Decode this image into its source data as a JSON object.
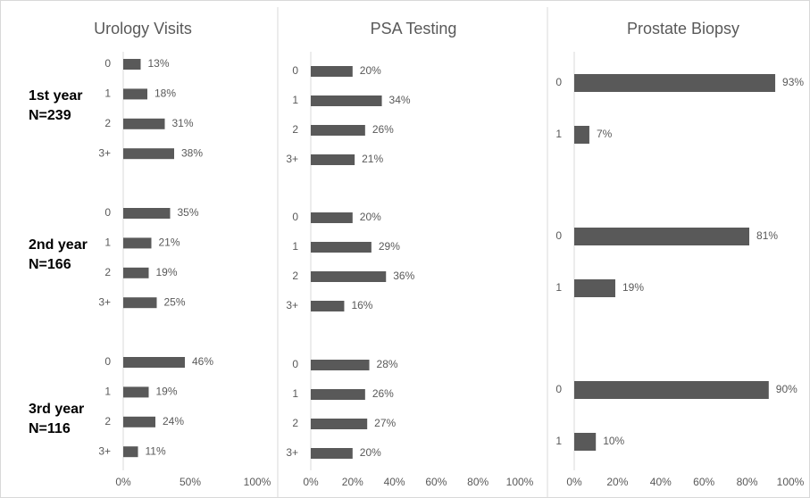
{
  "row_groups": [
    {
      "label": "1st year",
      "n": "N=239"
    },
    {
      "label": "2nd year",
      "n": "N=166"
    },
    {
      "label": "3rd year",
      "n": "N=116"
    }
  ],
  "chart_data": [
    {
      "type": "bar",
      "orientation": "horizontal",
      "title": "Urology Visits",
      "color": "#595959",
      "xlim": [
        0,
        100
      ],
      "xticks": [
        {
          "value": 0,
          "label": "0%"
        },
        {
          "value": 50,
          "label": "50%"
        },
        {
          "value": 100,
          "label": "100%"
        }
      ],
      "groups": [
        {
          "categories": [
            "0",
            "1",
            "2",
            "3+"
          ],
          "values": [
            13,
            18,
            31,
            38
          ],
          "value_labels": [
            "13%",
            "18%",
            "31%",
            "38%"
          ]
        },
        {
          "categories": [
            "0",
            "1",
            "2",
            "3+"
          ],
          "values": [
            35,
            21,
            19,
            25
          ],
          "value_labels": [
            "35%",
            "21%",
            "19%",
            "25%"
          ]
        },
        {
          "categories": [
            "0",
            "1",
            "2",
            "3+"
          ],
          "values": [
            46,
            19,
            24,
            11
          ],
          "value_labels": [
            "46%",
            "19%",
            "24%",
            "11%"
          ]
        }
      ]
    },
    {
      "type": "bar",
      "orientation": "horizontal",
      "title": "PSA Testing",
      "color": "#595959",
      "xlim": [
        0,
        100
      ],
      "xticks": [
        {
          "value": 0,
          "label": "0%"
        },
        {
          "value": 20,
          "label": "20%"
        },
        {
          "value": 40,
          "label": "40%"
        },
        {
          "value": 60,
          "label": "60%"
        },
        {
          "value": 80,
          "label": "80%"
        },
        {
          "value": 100,
          "label": "100%"
        }
      ],
      "groups": [
        {
          "categories": [
            "0",
            "1",
            "2",
            "3+"
          ],
          "values": [
            20,
            34,
            26,
            21
          ],
          "value_labels": [
            "20%",
            "34%",
            "26%",
            "21%"
          ]
        },
        {
          "categories": [
            "0",
            "1",
            "2",
            "3+"
          ],
          "values": [
            20,
            29,
            36,
            16
          ],
          "value_labels": [
            "20%",
            "29%",
            "36%",
            "16%"
          ]
        },
        {
          "categories": [
            "0",
            "1",
            "2",
            "3+"
          ],
          "values": [
            28,
            26,
            27,
            20
          ],
          "value_labels": [
            "28%",
            "26%",
            "27%",
            "20%"
          ]
        }
      ]
    },
    {
      "type": "bar",
      "orientation": "horizontal",
      "title": "Prostate Biopsy",
      "color": "#595959",
      "xlim": [
        0,
        100
      ],
      "xticks": [
        {
          "value": 0,
          "label": "0%"
        },
        {
          "value": 20,
          "label": "20%"
        },
        {
          "value": 40,
          "label": "40%"
        },
        {
          "value": 60,
          "label": "60%"
        },
        {
          "value": 80,
          "label": "80%"
        },
        {
          "value": 100,
          "label": "100%"
        }
      ],
      "groups": [
        {
          "categories": [
            "0",
            "1"
          ],
          "values": [
            93,
            7
          ],
          "value_labels": [
            "93%",
            "7%"
          ]
        },
        {
          "categories": [
            "0",
            "1"
          ],
          "values": [
            81,
            19
          ],
          "value_labels": [
            "81%",
            "19%"
          ]
        },
        {
          "categories": [
            "0",
            "1"
          ],
          "values": [
            90,
            10
          ],
          "value_labels": [
            "90%",
            "10%"
          ]
        }
      ]
    }
  ]
}
